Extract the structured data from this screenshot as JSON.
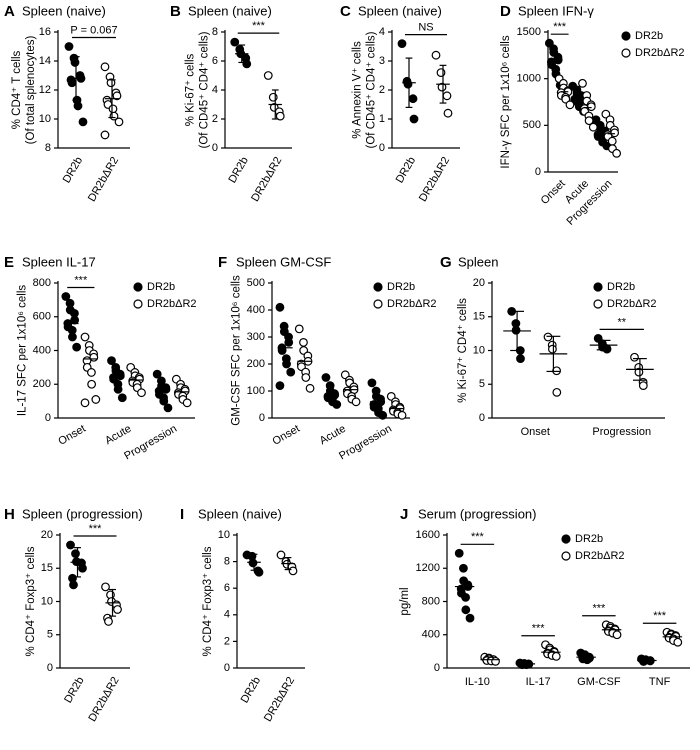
{
  "chart_data": [
    {
      "type": "dot",
      "panel": "A",
      "title": "Spleen (naive)",
      "ylabel": "% CD4⁺ T cells",
      "ylabel2": "(Of total splenocytes)",
      "categories": [
        "DR2b",
        "DR2bΔR2"
      ],
      "ylim": [
        8,
        16
      ],
      "yticks": [
        8,
        10,
        12,
        14,
        16
      ],
      "series": [
        {
          "filled": true,
          "values": [
            [
              15.0,
              14.2,
              13.9,
              13.0,
              12.8,
              12.7,
              12.5,
              11.3,
              10.9,
              9.8
            ],
            null
          ],
          "mean": [
            12.8,
            null
          ],
          "sd": [
            1.5,
            null
          ]
        },
        {
          "filled": false,
          "values": [
            null,
            [
              13.6,
              12.9,
              12.5,
              11.8,
              11.6,
              11.3,
              11.0,
              10.7,
              10.2,
              9.8,
              8.9
            ]
          ],
          "mean": [
            null,
            11.4
          ],
          "sd": [
            null,
            1.3
          ]
        }
      ],
      "annotations": [
        {
          "text": "P = 0.067",
          "category": 0
        }
      ]
    },
    {
      "type": "dot",
      "panel": "B",
      "title": "Spleen (naive)",
      "ylabel": "% Ki-67⁺ cells",
      "ylabel2": "(Of CD45⁺ CD4⁺ cells)",
      "categories": [
        "DR2b",
        "DR2bΔR2"
      ],
      "ylim": [
        0,
        8
      ],
      "yticks": [
        0,
        2,
        4,
        6,
        8
      ],
      "series": [
        {
          "filled": true,
          "values": [
            [
              7.3,
              6.8,
              6.5,
              6.2,
              5.8
            ],
            null
          ],
          "mean": [
            6.5,
            null
          ],
          "sd": [
            0.6,
            null
          ]
        },
        {
          "filled": false,
          "values": [
            null,
            [
              5.0,
              3.5,
              2.8,
              2.5,
              2.2
            ]
          ],
          "mean": [
            null,
            3.0
          ],
          "sd": [
            null,
            1.0
          ]
        }
      ],
      "annotations": [
        {
          "text": "***",
          "category": 0
        }
      ]
    },
    {
      "type": "dot",
      "panel": "C",
      "title": "Spleen (naive)",
      "ylabel": "% Annexin V⁺ cells",
      "ylabel2": "(Of CD45⁺ CD4⁺ cells)",
      "categories": [
        "DR2b",
        "DR2bΔR2"
      ],
      "ylim": [
        0,
        4
      ],
      "yticks": [
        0,
        1,
        2,
        3,
        4
      ],
      "series": [
        {
          "filled": true,
          "values": [
            [
              3.6,
              2.3,
              2.2,
              1.7,
              1.0
            ],
            null
          ],
          "mean": [
            2.25,
            null
          ],
          "sd": [
            0.85,
            null
          ]
        },
        {
          "filled": false,
          "values": [
            null,
            [
              3.2,
              2.6,
              2.1,
              1.8,
              1.2
            ]
          ],
          "mean": [
            null,
            2.2
          ],
          "sd": [
            null,
            0.65
          ]
        }
      ],
      "annotations": [
        {
          "text": "NS",
          "category": 0
        }
      ]
    },
    {
      "type": "dot",
      "panel": "D",
      "title": "Spleen IFN-γ",
      "ylabel": "IFN-γ SFC per 1x10⁶ cells",
      "categories": [
        "Onset",
        "Acute",
        "Progression"
      ],
      "ylim": [
        0,
        1500
      ],
      "yticks": [
        0,
        500,
        1000,
        1500
      ],
      "series": [
        {
          "name": "DR2b",
          "filled": true,
          "values": [
            [
              1380,
              1320,
              1280,
              1230,
              1200,
              1180,
              1150,
              1100,
              1050,
              930
            ],
            [
              920,
              880,
              840,
              820,
              800,
              780,
              760,
              730,
              700,
              650
            ],
            [
              560,
              500,
              470,
              440,
              420,
              400,
              380,
              350,
              320,
              280
            ]
          ],
          "mean": [
            1180,
            790,
            410
          ]
        },
        {
          "name": "DR2bΔR2",
          "filled": false,
          "values": [
            [
              1000,
              950,
              900,
              870,
              860,
              850,
              820,
              800,
              780,
              720
            ],
            [
              950,
              820,
              760,
              720,
              700,
              680,
              650,
              600,
              550,
              480
            ],
            [
              620,
              560,
              500,
              450,
              420,
              400,
              380,
              330,
              250,
              200
            ]
          ],
          "mean": [
            860,
            690,
            410
          ]
        }
      ],
      "annotations": [
        {
          "text": "***",
          "category": 0
        }
      ]
    },
    {
      "type": "dot",
      "panel": "E",
      "title": "Spleen IL-17",
      "ylabel": "IL-17 SFC per 1x10⁶ cells",
      "categories": [
        "Onset",
        "Acute",
        "Progression"
      ],
      "ylim": [
        0,
        800
      ],
      "yticks": [
        0,
        200,
        400,
        600,
        800
      ],
      "series": [
        {
          "name": "DR2b",
          "filled": true,
          "values": [
            [
              720,
              680,
              640,
              620,
              580,
              560,
              540,
              520,
              480,
              420
            ],
            [
              340,
              300,
              280,
              260,
              250,
              240,
              230,
              200,
              170,
              120
            ],
            [
              260,
              220,
              190,
              180,
              170,
              160,
              140,
              120,
              100,
              60
            ]
          ],
          "mean": [
            560,
            240,
            160
          ]
        },
        {
          "name": "DR2bΔR2",
          "filled": false,
          "values": [
            [
              480,
              430,
              400,
              380,
              360,
              340,
              300,
              270,
              200,
              110,
              90
            ],
            [
              300,
              270,
              250,
              240,
              230,
              220,
              210,
              200,
              180,
              150
            ],
            [
              230,
              200,
              180,
              170,
              160,
              150,
              140,
              130,
              110,
              90
            ]
          ],
          "mean": [
            350,
            225,
            155
          ]
        }
      ],
      "annotations": [
        {
          "text": "***",
          "category": 0
        }
      ]
    },
    {
      "type": "dot",
      "panel": "F",
      "title": "Spleen GM-CSF",
      "ylabel": "GM-CSF SFC per 1x10⁶ cells",
      "categories": [
        "Onset",
        "Acute",
        "Progression"
      ],
      "ylim": [
        0,
        500
      ],
      "yticks": [
        0,
        100,
        200,
        300,
        400,
        500
      ],
      "series": [
        {
          "name": "DR2b",
          "filled": true,
          "values": [
            [
              410,
              340,
              320,
              300,
              280,
              260,
              250,
              220,
              200,
              170,
              120
            ],
            [
              150,
              120,
              100,
              90,
              85,
              80,
              75,
              70,
              60,
              50
            ],
            [
              130,
              100,
              80,
              70,
              60,
              50,
              40,
              35,
              20,
              10
            ]
          ],
          "mean": [
            260,
            85,
            60
          ]
        },
        {
          "name": "DR2bΔR2",
          "filled": false,
          "values": [
            [
              330,
              280,
              250,
              230,
              210,
              200,
              190,
              170,
              150,
              110
            ],
            [
              160,
              140,
              130,
              115,
              105,
              100,
              90,
              80,
              70,
              60
            ],
            [
              80,
              60,
              50,
              40,
              35,
              30,
              25,
              20,
              15,
              10
            ]
          ],
          "mean": [
            210,
            105,
            35
          ]
        }
      ],
      "annotations": []
    },
    {
      "type": "dot",
      "panel": "G",
      "title": "Spleen",
      "ylabel": "% Ki-67⁺ CD4⁺ cells",
      "categories": [
        "Onset",
        "Progression"
      ],
      "ylim": [
        0,
        20
      ],
      "yticks": [
        0,
        5,
        10,
        15,
        20
      ],
      "series": [
        {
          "name": "DR2b",
          "filled": true,
          "values": [
            [
              15.8,
              14.0,
              13.0,
              10.0,
              8.8
            ],
            [
              11.8,
              11.0,
              10.5,
              10.3,
              10.2
            ]
          ],
          "mean": [
            12.9,
            10.8
          ],
          "sd": [
            2.9,
            0.7
          ]
        },
        {
          "name": "DR2bΔR2",
          "filled": false,
          "values": [
            [
              12.0,
              10.8,
              10.2,
              7.0,
              3.8
            ],
            [
              9.0,
              7.5,
              6.8,
              5.3,
              4.8
            ]
          ],
          "mean": [
            9.5,
            7.2
          ],
          "sd": [
            2.6,
            1.6
          ]
        }
      ],
      "annotations": [
        {
          "text": "**",
          "category": 1
        }
      ]
    },
    {
      "type": "dot",
      "panel": "H",
      "title": "Spleen (progression)",
      "ylabel": "% CD4⁺ Foxp3⁺ cells",
      "categories": [
        "DR2b",
        "DR2bΔR2"
      ],
      "ylim": [
        0,
        20
      ],
      "yticks": [
        0,
        5,
        10,
        15,
        20
      ],
      "series": [
        {
          "filled": true,
          "values": [
            [
              18.5,
              17.2,
              16.0,
              15.8,
              15.0,
              13.5,
              12.5
            ],
            null
          ],
          "mean": [
            15.9,
            null
          ],
          "sd": [
            2.2,
            null
          ]
        },
        {
          "filled": false,
          "values": [
            null,
            [
              12.2,
              11.0,
              10.0,
              9.5,
              8.8,
              7.5,
              7.0
            ]
          ],
          "mean": [
            null,
            9.8
          ],
          "sd": [
            null,
            2.0
          ]
        }
      ],
      "annotations": [
        {
          "text": "***",
          "category": 0
        }
      ]
    },
    {
      "type": "dot",
      "panel": "I",
      "title": "Spleen (naive)",
      "ylabel": "% CD4⁺ Foxp3⁺ cells",
      "categories": [
        "DR2b",
        "DR2bΔR2"
      ],
      "ylim": [
        0,
        10
      ],
      "yticks": [
        0,
        2,
        4,
        6,
        8,
        10
      ],
      "series": [
        {
          "filled": true,
          "values": [
            [
              8.5,
              8.4,
              7.9,
              7.3,
              7.2
            ],
            null
          ],
          "mean": [
            7.95,
            null
          ],
          "sd": [
            0.6,
            null
          ]
        },
        {
          "filled": false,
          "values": [
            null,
            [
              8.5,
              8.0,
              7.8,
              7.6,
              7.3
            ]
          ],
          "mean": [
            null,
            7.85
          ],
          "sd": [
            null,
            0.45
          ]
        }
      ],
      "annotations": []
    },
    {
      "type": "dot",
      "panel": "J",
      "title": "Serum (progression)",
      "ylabel": "pg/ml",
      "categories": [
        "IL-10",
        "IL-17",
        "GM-CSF",
        "TNF"
      ],
      "ylim": [
        0,
        1600
      ],
      "yticks": [
        0,
        400,
        800,
        1200,
        1600
      ],
      "series": [
        {
          "name": "DR2b",
          "filled": true,
          "values": [
            [
              1380,
              1200,
              1050,
              1000,
              980,
              950,
              900,
              850,
              700,
              600
            ],
            [
              60,
              55,
              50,
              50,
              45,
              45,
              40,
              40
            ],
            [
              180,
              160,
              140,
              130,
              120,
              120,
              110,
              100,
              100
            ],
            [
              110,
              100,
              95,
              90,
              85,
              80,
              80
            ]
          ],
          "mean": [
            980,
            50,
            130,
            90
          ]
        },
        {
          "name": "DR2bΔR2",
          "filled": false,
          "values": [
            [
              130,
              120,
              110,
              100,
              100,
              95,
              90,
              90,
              85,
              80
            ],
            [
              280,
              240,
              220,
              200,
              190,
              180,
              170,
              160,
              150,
              140
            ],
            [
              520,
              500,
              480,
              470,
              460,
              450,
              440,
              430,
              420,
              400
            ],
            [
              430,
              410,
              400,
              390,
              380,
              370,
              360,
              350,
              330,
              310
            ]
          ],
          "mean": [
            100,
            190,
            460,
            375
          ]
        }
      ],
      "annotations": [
        {
          "text": "***",
          "category": 0
        },
        {
          "text": "***",
          "category": 1
        },
        {
          "text": "***",
          "category": 2
        },
        {
          "text": "***",
          "category": 3
        }
      ]
    }
  ]
}
